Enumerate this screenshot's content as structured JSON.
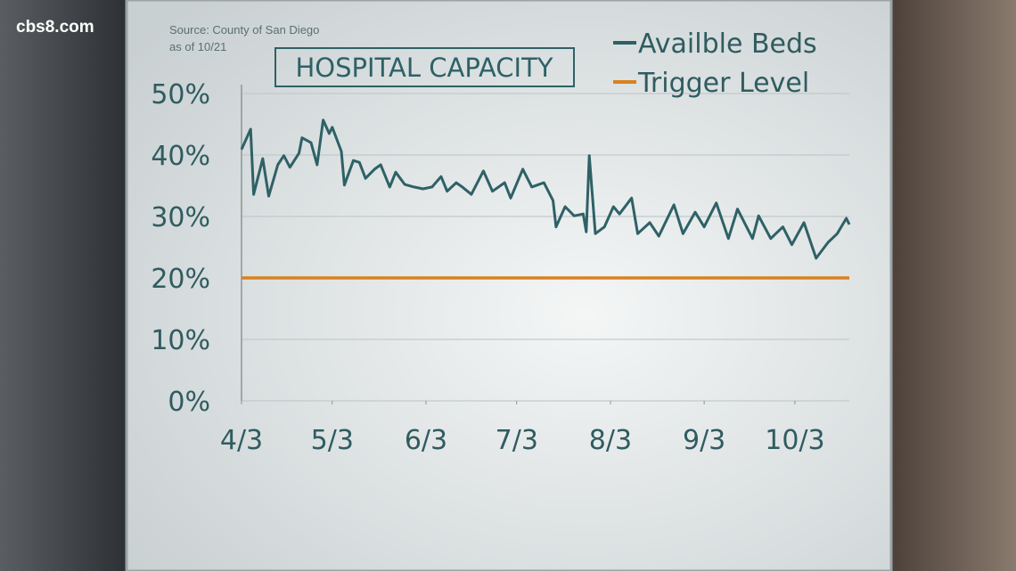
{
  "logo": "cbs8.com",
  "chart_data": {
    "type": "line",
    "title": "HOSPITAL CAPACITY",
    "source": "Source: County of San Diego",
    "note": "as of 10/21",
    "xlim": [
      0,
      201
    ],
    "ylim": [
      0,
      50
    ],
    "xticks": [
      {
        "value": 0,
        "label": "4/3"
      },
      {
        "value": 30,
        "label": "5/3"
      },
      {
        "value": 61,
        "label": "6/3"
      },
      {
        "value": 91,
        "label": "7/3"
      },
      {
        "value": 122,
        "label": "8/3"
      },
      {
        "value": 153,
        "label": "9/3"
      },
      {
        "value": 183,
        "label": "10/3"
      }
    ],
    "yticks": [
      {
        "value": 0,
        "label": "0%"
      },
      {
        "value": 10,
        "label": "10%"
      },
      {
        "value": 20,
        "label": "20%"
      },
      {
        "value": 30,
        "label": "30%"
      },
      {
        "value": 40,
        "label": "40%"
      },
      {
        "value": 50,
        "label": "50%"
      }
    ],
    "grid": true,
    "legend": "top-right",
    "series": [
      {
        "name": "Availble Beds",
        "color": "#2e6166",
        "x": [
          0,
          3,
          4,
          7,
          9,
          12,
          14,
          16,
          19,
          20,
          23,
          25,
          27,
          29,
          30,
          33,
          34,
          37,
          39,
          41,
          44,
          46,
          49,
          51,
          54,
          57,
          60,
          63,
          66,
          68,
          71,
          73,
          76,
          80,
          83,
          87,
          89,
          93,
          96,
          100,
          103,
          104,
          107,
          110,
          113,
          114,
          115,
          117,
          120,
          123,
          125,
          129,
          131,
          135,
          138,
          143,
          146,
          150,
          153,
          157,
          161,
          164,
          169,
          171,
          175,
          179,
          182,
          186,
          190,
          194,
          197,
          200,
          201
        ],
        "values": [
          40.9,
          44.2,
          33.6,
          39.4,
          33.3,
          38.4,
          39.9,
          38.0,
          40.3,
          42.8,
          42.0,
          38.4,
          45.7,
          43.5,
          44.5,
          40.6,
          35.1,
          39.1,
          38.8,
          36.2,
          37.7,
          38.4,
          34.8,
          37.2,
          35.2,
          34.8,
          34.5,
          34.8,
          36.5,
          34.1,
          35.5,
          34.8,
          33.6,
          37.4,
          34.1,
          35.5,
          33.0,
          37.7,
          34.8,
          35.5,
          32.6,
          28.3,
          31.6,
          30.1,
          30.4,
          27.5,
          39.9,
          27.2,
          28.3,
          31.6,
          30.4,
          33.0,
          27.2,
          29.0,
          26.8,
          31.9,
          27.2,
          30.7,
          28.3,
          32.2,
          26.4,
          31.2,
          26.4,
          30.1,
          26.4,
          28.3,
          25.4,
          29.0,
          23.2,
          25.8,
          27.2,
          29.7,
          28.7
        ]
      },
      {
        "name": "Trigger Level",
        "color": "#d9821e",
        "x": [
          0,
          201
        ],
        "values": [
          20,
          20
        ]
      }
    ]
  }
}
